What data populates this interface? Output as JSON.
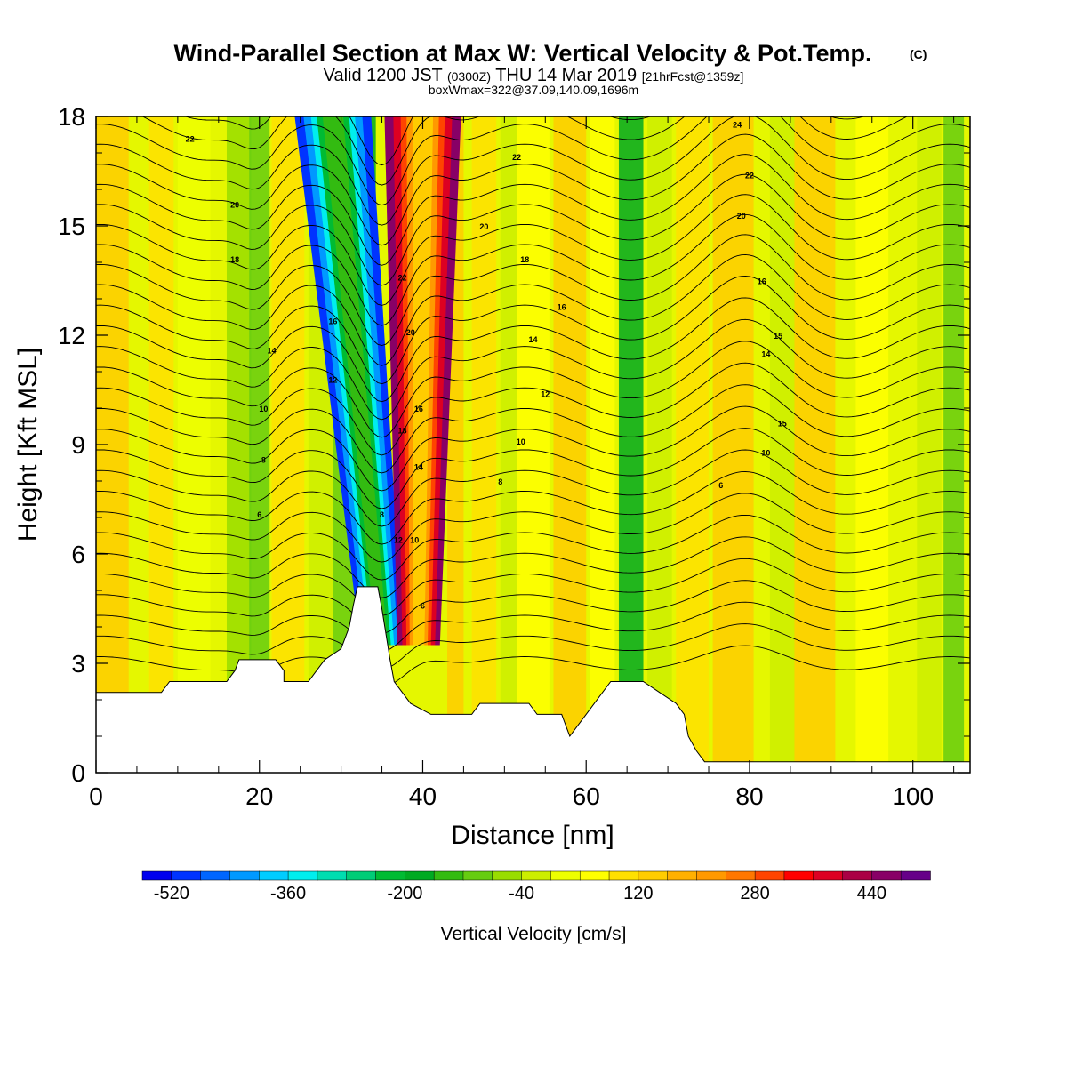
{
  "chart_data": {
    "type": "heatmap",
    "title": "Wind-Parallel Section at Max W: Vertical Velocity & Pot.Temp.",
    "title_mark": "(C)",
    "subtitle": {
      "main": "Valid 1200 JST",
      "utc": "(0300Z)",
      "date": "THU 14 Mar 2019",
      "fcst": "[21hrFcst@1359z]"
    },
    "subtitle2": "boxWmax=322@37.09,140.09,1696m",
    "xlabel": "Distance [nm]",
    "ylabel": "Height [Kft MSL]",
    "xlim": [
      0,
      107
    ],
    "ylim": [
      0,
      18
    ],
    "xticks": [
      0,
      20,
      40,
      60,
      80,
      100
    ],
    "yticks": [
      0,
      3,
      6,
      9,
      12,
      15,
      18
    ],
    "colorbar": {
      "label": "Vertical Velocity [cm/s]",
      "ticks": [
        -520,
        -360,
        -200,
        -40,
        120,
        280,
        440
      ],
      "min": -560,
      "max": 520,
      "step": 40,
      "colors": [
        "#0000ee",
        "#0033ff",
        "#0066ff",
        "#0099ff",
        "#00ccff",
        "#00eeee",
        "#00ddb0",
        "#00cc77",
        "#00bb33",
        "#00aa22",
        "#33bb11",
        "#66cc11",
        "#99dd00",
        "#ccee00",
        "#eeff00",
        "#ffff00",
        "#ffe000",
        "#ffcc00",
        "#ffb000",
        "#ff9900",
        "#ff7700",
        "#ff4400",
        "#ff0000",
        "#dd0022",
        "#aa0044",
        "#880066",
        "#660088"
      ]
    },
    "velocity_features": [
      {
        "type": "downdraft",
        "x_nm": 35,
        "w_cm_s": -520
      },
      {
        "type": "updraft",
        "x_nm": 40,
        "w_cm_s": 440
      },
      {
        "type": "updraft_band",
        "x_nm": 58,
        "w_cm_s": 120
      },
      {
        "type": "downdraft_band",
        "x_nm": 66,
        "w_cm_s": -200
      },
      {
        "type": "updraft_band",
        "x_nm": 80,
        "w_cm_s": 120
      },
      {
        "type": "downdraft_band",
        "x_nm": 20,
        "w_cm_s": -120
      },
      {
        "type": "downdraft_band",
        "x_nm": 104,
        "w_cm_s": -120
      }
    ],
    "terrain_kft": [
      [
        0,
        2.2
      ],
      [
        8,
        2.2
      ],
      [
        9,
        2.5
      ],
      [
        16,
        2.5
      ],
      [
        17,
        2.8
      ],
      [
        17.5,
        3.1
      ],
      [
        22,
        3.1
      ],
      [
        23,
        2.8
      ],
      [
        23,
        2.5
      ],
      [
        26,
        2.5
      ],
      [
        27,
        2.8
      ],
      [
        28,
        3.1
      ],
      [
        30,
        3.4
      ],
      [
        31,
        4.0
      ],
      [
        31.5,
        4.6
      ],
      [
        32,
        5.1
      ],
      [
        34.5,
        5.1
      ],
      [
        35,
        4.5
      ],
      [
        36,
        3.1
      ],
      [
        36.5,
        2.5
      ],
      [
        37.5,
        2.2
      ],
      [
        38.5,
        1.9
      ],
      [
        41,
        1.6
      ],
      [
        46,
        1.6
      ],
      [
        47,
        1.9
      ],
      [
        53,
        1.9
      ],
      [
        54,
        1.6
      ],
      [
        57,
        1.6
      ],
      [
        57.5,
        1.3
      ],
      [
        58,
        1.0
      ],
      [
        59,
        1.3
      ],
      [
        60,
        1.6
      ],
      [
        61,
        1.9
      ],
      [
        63,
        2.5
      ],
      [
        67,
        2.5
      ],
      [
        69,
        2.2
      ],
      [
        71,
        1.9
      ],
      [
        72,
        1.6
      ],
      [
        72.5,
        1.0
      ],
      [
        73.5,
        0.6
      ],
      [
        74.5,
        0.3
      ],
      [
        80,
        0.3
      ],
      [
        107,
        0.3
      ]
    ],
    "theta_contour_labels": [
      {
        "x": 20,
        "y": 7.0,
        "text": "6"
      },
      {
        "x": 20.5,
        "y": 8.5,
        "text": "8"
      },
      {
        "x": 20.5,
        "y": 9.9,
        "text": "10"
      },
      {
        "x": 21.5,
        "y": 11.5,
        "text": "14"
      },
      {
        "x": 29,
        "y": 10.7,
        "text": "12"
      },
      {
        "x": 29,
        "y": 12.3,
        "text": "16"
      },
      {
        "x": 17,
        "y": 14.0,
        "text": "18"
      },
      {
        "x": 17,
        "y": 15.5,
        "text": "20"
      },
      {
        "x": 11.5,
        "y": 17.3,
        "text": "22"
      },
      {
        "x": 35,
        "y": 7.0,
        "text": "8"
      },
      {
        "x": 37,
        "y": 6.3,
        "text": "12"
      },
      {
        "x": 39,
        "y": 6.3,
        "text": "10"
      },
      {
        "x": 40,
        "y": 4.5,
        "text": "6"
      },
      {
        "x": 39.5,
        "y": 8.3,
        "text": "14"
      },
      {
        "x": 37.5,
        "y": 9.3,
        "text": "18"
      },
      {
        "x": 39.5,
        "y": 9.9,
        "text": "16"
      },
      {
        "x": 38.5,
        "y": 12.0,
        "text": "20"
      },
      {
        "x": 37.5,
        "y": 13.5,
        "text": "22"
      },
      {
        "x": 49.5,
        "y": 7.9,
        "text": "8"
      },
      {
        "x": 52,
        "y": 9.0,
        "text": "10"
      },
      {
        "x": 55,
        "y": 10.3,
        "text": "12"
      },
      {
        "x": 53.5,
        "y": 11.8,
        "text": "14"
      },
      {
        "x": 52.5,
        "y": 14.0,
        "text": "18"
      },
      {
        "x": 57,
        "y": 12.7,
        "text": "16"
      },
      {
        "x": 47.5,
        "y": 14.9,
        "text": "20"
      },
      {
        "x": 51.5,
        "y": 16.8,
        "text": "22"
      },
      {
        "x": 76.5,
        "y": 7.8,
        "text": "6"
      },
      {
        "x": 82,
        "y": 8.7,
        "text": "10"
      },
      {
        "x": 84,
        "y": 9.5,
        "text": "15"
      },
      {
        "x": 82,
        "y": 11.4,
        "text": "14"
      },
      {
        "x": 83.5,
        "y": 11.9,
        "text": "15"
      },
      {
        "x": 81.5,
        "y": 13.4,
        "text": "16"
      },
      {
        "x": 79,
        "y": 15.2,
        "text": "20"
      },
      {
        "x": 80,
        "y": 16.3,
        "text": "22"
      },
      {
        "x": 78.5,
        "y": 17.7,
        "text": "24"
      }
    ]
  }
}
